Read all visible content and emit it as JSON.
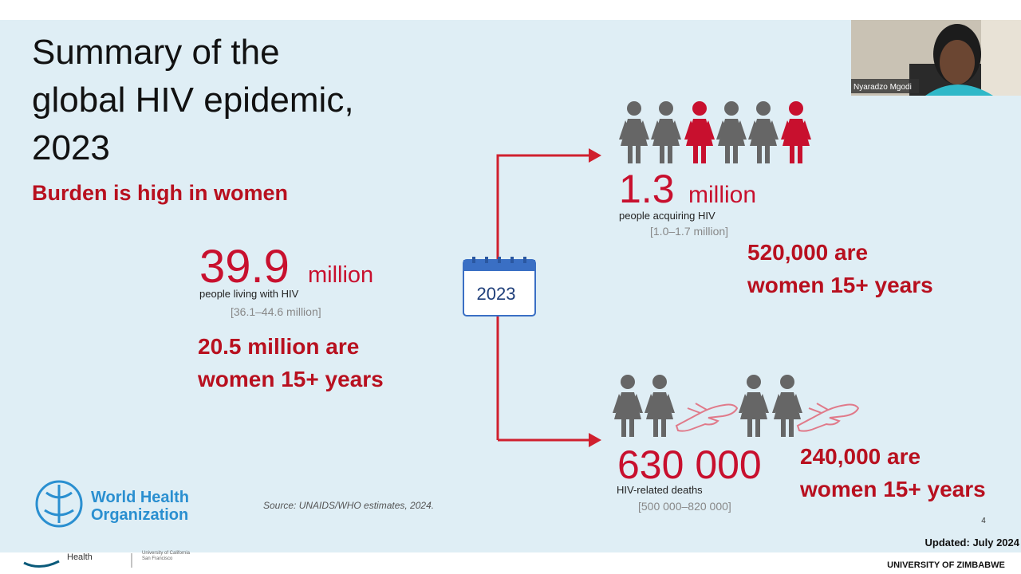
{
  "call": {
    "participant_name": "Nyaradzo Mgodi"
  },
  "slide": {
    "title_lines": [
      "Summary of the",
      "global HIV epidemic,",
      "2023"
    ],
    "subtitle": "Burden is high in women",
    "calendar_year": "2023",
    "living": {
      "number": "39.9",
      "unit": "million",
      "label": "people living with HIV",
      "range": "[36.1–44.6 million]",
      "women_lines": [
        "20.5 million are",
        "women 15+ years"
      ]
    },
    "acquiring": {
      "number": "1.3",
      "unit": "million",
      "label": "people acquiring HIV",
      "range": "[1.0–1.7 million]",
      "women_lines": [
        "520,000 are",
        "women 15+ years"
      ]
    },
    "deaths": {
      "number": "630 000",
      "label": "HIV-related deaths",
      "range": "[500 000–820 000]",
      "women_lines": [
        "240,000 are",
        "women 15+ years"
      ]
    },
    "logo": {
      "lines": [
        "World Health",
        "Organization"
      ]
    },
    "source": "Source: UNAIDS/WHO estimates, 2024.",
    "page_number": "4",
    "updated": "Updated: July 2024"
  },
  "footer": {
    "left": "Health",
    "middle_lines": [
      "University of California",
      "San Francisco"
    ],
    "right": "UNIVERSITY OF ZIMBABWE"
  }
}
